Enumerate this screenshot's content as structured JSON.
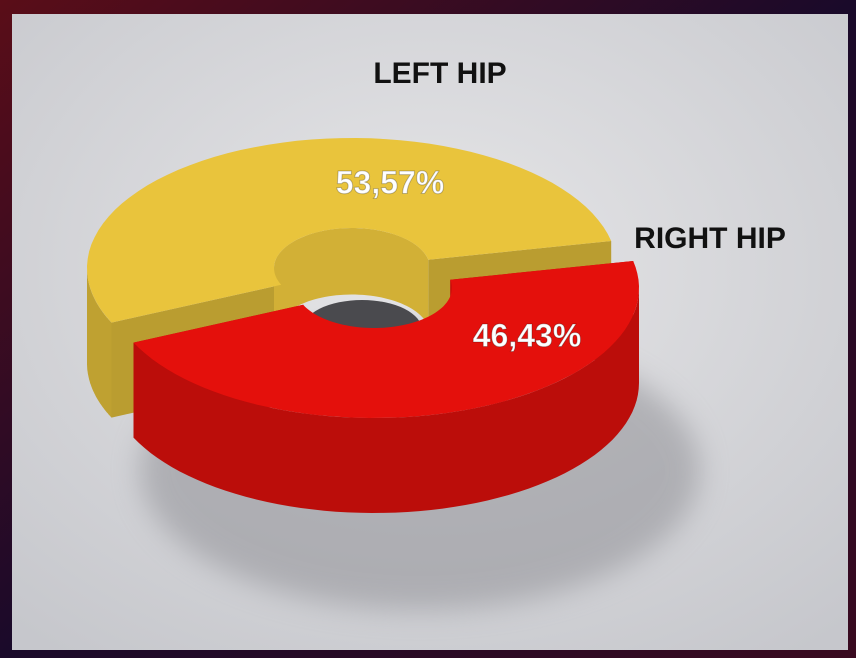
{
  "chart_data": {
    "type": "pie",
    "categories": [
      "LEFT HIP",
      "RIGHT HIP"
    ],
    "values": [
      53.57,
      46.43
    ],
    "value_labels": [
      "53,57%",
      "46,43%"
    ],
    "colors": [
      "#e9c43c",
      "#e4100c"
    ],
    "donut": true,
    "three_d": true
  }
}
